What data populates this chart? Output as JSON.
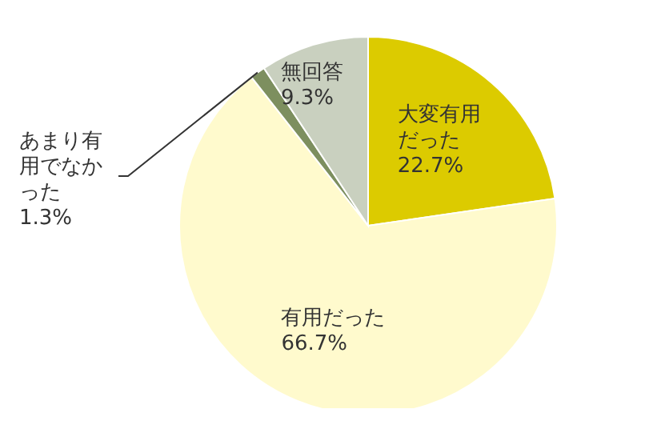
{
  "chart_data": {
    "type": "pie",
    "categories": [
      "大変有用だった",
      "有用だった",
      "あまり有用でなかった",
      "無回答"
    ],
    "values": [
      22.7,
      66.7,
      1.3,
      9.3
    ],
    "colors": [
      "#dccb00",
      "#fffacd",
      "#7d8f5f",
      "#c9d0bf"
    ],
    "value_labels": [
      "22.7%",
      "66.7%",
      "1.3%",
      "9.3%"
    ]
  }
}
